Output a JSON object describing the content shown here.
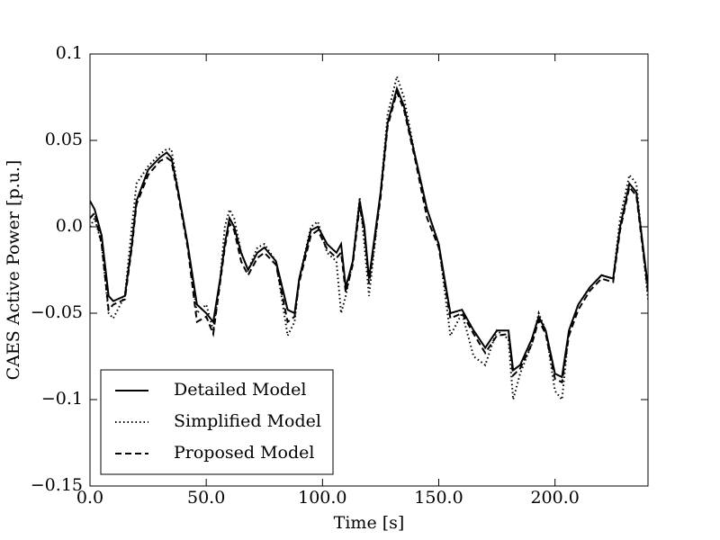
{
  "chart_data": {
    "type": "line",
    "xlabel": "Time [s]",
    "ylabel": "CAES Active Power [p.u.]",
    "x": [
      0,
      2,
      5,
      8,
      10,
      15,
      18,
      20,
      25,
      30,
      33,
      35,
      38,
      42,
      46,
      50,
      53,
      56,
      58,
      60,
      62,
      65,
      68,
      72,
      75,
      80,
      85,
      88,
      90,
      95,
      98,
      102,
      106,
      108,
      110,
      113,
      116,
      118,
      120,
      125,
      128,
      132,
      135,
      140,
      145,
      150,
      155,
      160,
      165,
      170,
      175,
      180,
      182,
      185,
      190,
      193,
      196,
      200,
      203,
      206,
      210,
      215,
      220,
      225,
      228,
      232,
      235,
      240
    ],
    "series": [
      {
        "name": "Detailed Model",
        "color": "#000000",
        "dash": "solid",
        "values": [
          0.015,
          0.01,
          -0.005,
          -0.04,
          -0.043,
          -0.04,
          -0.01,
          0.015,
          0.033,
          0.04,
          0.043,
          0.04,
          0.02,
          -0.01,
          -0.045,
          -0.05,
          -0.055,
          -0.03,
          -0.01,
          0.005,
          0,
          -0.015,
          -0.025,
          -0.015,
          -0.012,
          -0.02,
          -0.048,
          -0.05,
          -0.03,
          -0.002,
          0,
          -0.01,
          -0.015,
          -0.01,
          -0.035,
          -0.02,
          0.015,
          0,
          -0.03,
          0.02,
          0.06,
          0.08,
          0.07,
          0.04,
          0.01,
          -0.01,
          -0.05,
          -0.048,
          -0.06,
          -0.07,
          -0.06,
          -0.06,
          -0.083,
          -0.08,
          -0.065,
          -0.052,
          -0.06,
          -0.085,
          -0.087,
          -0.06,
          -0.045,
          -0.035,
          -0.028,
          -0.03,
          0,
          0.025,
          0.02,
          -0.035
        ]
      },
      {
        "name": "Simplified Model",
        "color": "#000000",
        "dash": "dotted",
        "values": [
          0,
          0.005,
          -0.01,
          -0.05,
          -0.053,
          -0.04,
          0,
          0.025,
          0.035,
          0.042,
          0.045,
          0.045,
          0.02,
          -0.01,
          -0.05,
          -0.045,
          -0.06,
          -0.03,
          0,
          0.01,
          0.005,
          -0.015,
          -0.025,
          -0.012,
          -0.01,
          -0.02,
          -0.063,
          -0.055,
          -0.03,
          0,
          0.003,
          -0.015,
          -0.02,
          -0.05,
          -0.04,
          -0.02,
          0.017,
          -0.01,
          -0.04,
          0.02,
          0.065,
          0.087,
          0.075,
          0.04,
          0.01,
          -0.01,
          -0.063,
          -0.05,
          -0.075,
          -0.08,
          -0.06,
          -0.065,
          -0.1,
          -0.085,
          -0.068,
          -0.05,
          -0.06,
          -0.095,
          -0.1,
          -0.06,
          -0.045,
          -0.035,
          -0.028,
          -0.03,
          0.005,
          0.03,
          0.025,
          -0.042
        ]
      },
      {
        "name": "Proposed Model",
        "color": "#000000",
        "dash": "dashed",
        "values": [
          0.005,
          0.008,
          -0.01,
          -0.048,
          -0.045,
          -0.042,
          -0.012,
          0.013,
          0.03,
          0.038,
          0.04,
          0.038,
          0.018,
          -0.012,
          -0.055,
          -0.052,
          -0.062,
          -0.032,
          -0.012,
          0.002,
          -0.002,
          -0.02,
          -0.028,
          -0.018,
          -0.015,
          -0.022,
          -0.055,
          -0.052,
          -0.032,
          -0.005,
          -0.002,
          -0.013,
          -0.018,
          -0.015,
          -0.038,
          -0.022,
          0.012,
          -0.003,
          -0.033,
          0.017,
          0.058,
          0.078,
          0.068,
          0.038,
          0.005,
          -0.012,
          -0.053,
          -0.05,
          -0.062,
          -0.073,
          -0.063,
          -0.062,
          -0.086,
          -0.082,
          -0.068,
          -0.054,
          -0.062,
          -0.088,
          -0.09,
          -0.063,
          -0.048,
          -0.037,
          -0.03,
          -0.032,
          -0.002,
          0.023,
          0.018,
          -0.038
        ]
      }
    ],
    "xlim": [
      0,
      240
    ],
    "xticks": [
      {
        "value": 0,
        "label": "0.0"
      },
      {
        "value": 50,
        "label": "50.0"
      },
      {
        "value": 100,
        "label": "100.0"
      },
      {
        "value": 150,
        "label": "150.0"
      },
      {
        "value": 200,
        "label": "200.0"
      }
    ],
    "ylim": [
      -0.15,
      0.1
    ],
    "yticks": [
      {
        "value": -0.15,
        "label": "−0.15"
      },
      {
        "value": -0.1,
        "label": "−0.1"
      },
      {
        "value": -0.05,
        "label": "−0.05"
      },
      {
        "value": 0,
        "label": "0.0"
      },
      0.05,
      0.1
    ],
    "grid": false,
    "legend": "lower left"
  }
}
